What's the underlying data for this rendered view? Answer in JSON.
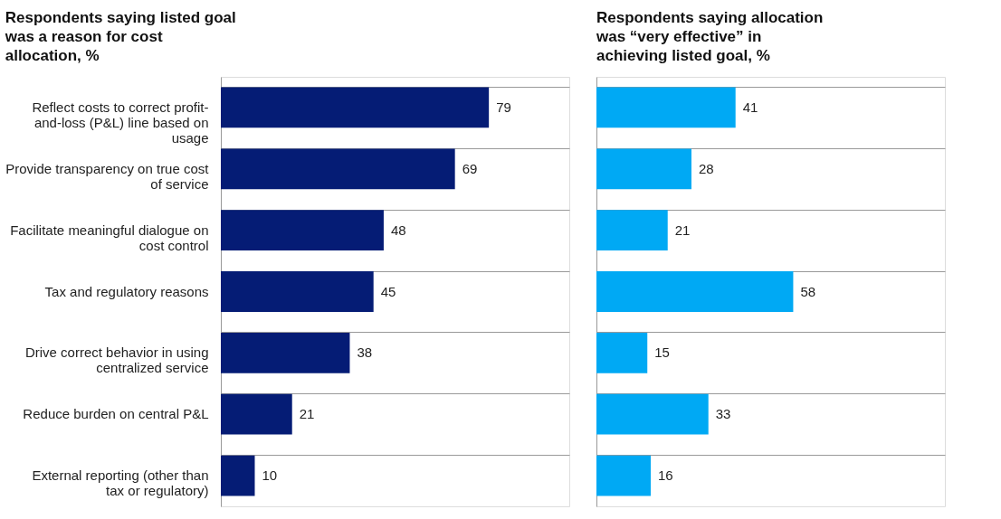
{
  "chart_data": [
    {
      "type": "bar",
      "orientation": "horizontal",
      "title": "Respondents saying listed goal was a reason for cost allocation, %",
      "categories": [
        "Reflect costs to correct profit-and-loss (P&L) line based on usage",
        "Provide transparency on true cost of service",
        "Facilitate meaningful dialogue on cost control",
        "Tax and regulatory reasons",
        "Drive correct behavior in using centralized service",
        "Reduce burden on central P&L",
        "External reporting (other than tax or regulatory)"
      ],
      "values": [
        79,
        69,
        48,
        45,
        38,
        21,
        10
      ],
      "color": "#051c75",
      "data_labels": true,
      "grid": "y",
      "tick_labels": "y"
    },
    {
      "type": "bar",
      "orientation": "horizontal",
      "title": "Respondents saying allocation was “very effective” in achieving listed goal, %",
      "values": [
        41,
        28,
        21,
        58,
        15,
        33,
        16
      ],
      "color": "#00a9f4",
      "data_labels": true,
      "grid": "y",
      "tick_labels": false
    }
  ]
}
